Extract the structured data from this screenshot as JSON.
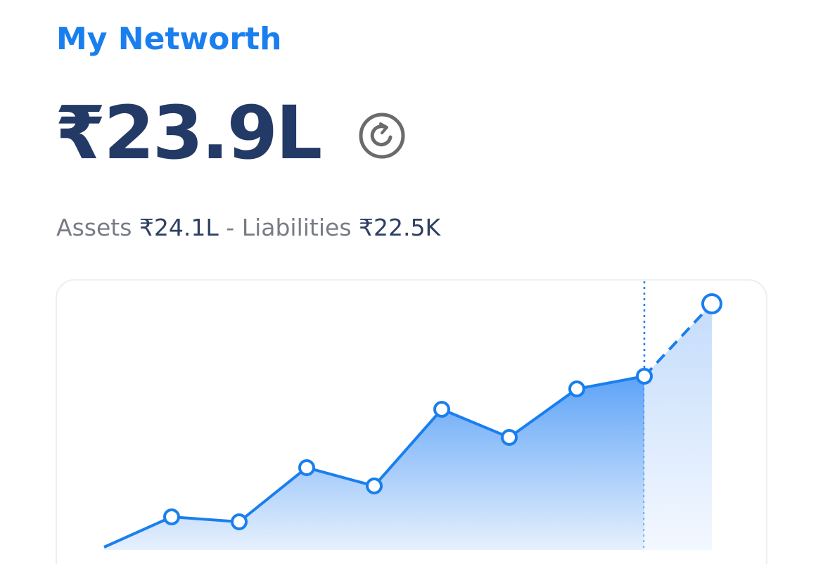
{
  "header": {
    "title": "My Networth",
    "amount": "₹23.9L"
  },
  "summary": {
    "assets_label": "Assets",
    "assets_value": "₹24.1L",
    "separator": "-",
    "liabilities_label": "Liabilities",
    "liabilities_value": "₹22.5K"
  },
  "chart_data": {
    "type": "area",
    "categories": [
      null,
      null,
      null,
      null,
      null,
      null,
      null,
      null,
      null,
      null
    ],
    "series": [
      {
        "color": "#1a7fee",
        "values": [
          4,
          47,
          40,
          117,
          91,
          200,
          160,
          229,
          247,
          null
        ]
      },
      {
        "color": "#1a7fee",
        "style": "dashed",
        "values": [
          null,
          null,
          null,
          null,
          null,
          null,
          null,
          null,
          247,
          350
        ]
      }
    ]
  }
}
